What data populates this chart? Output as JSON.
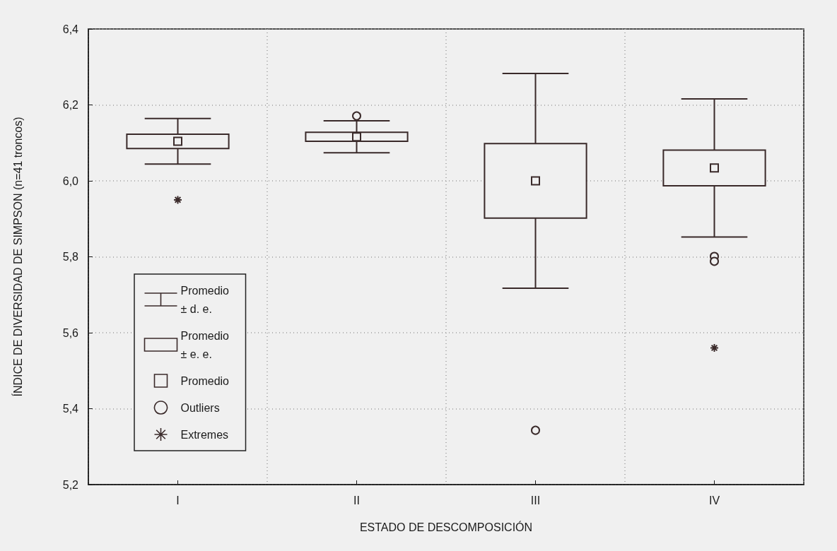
{
  "chart_data": {
    "type": "scatter",
    "xlabel": "ESTADO DE DESCOMPOSICIÓN",
    "ylabel": "ÍNDICE DE DIVERSIDAD DE SIMPSON (n=41 troncos)",
    "categories": [
      "I",
      "II",
      "III",
      "IV"
    ],
    "series": [
      {
        "name": "Promedio ± d. e.",
        "type": "bar",
        "color": "#3a2a2a",
        "base": [
          6.044,
          6.074,
          5.717,
          5.852
        ],
        "values": [
          0.12,
          0.084,
          0.566,
          0.364
        ]
      },
      {
        "name": "Promedio ± e. e.",
        "type": "bar",
        "color": "#3a2a2a",
        "base": [
          6.085,
          6.104,
          5.902,
          5.987
        ],
        "values": [
          0.038,
          0.024,
          0.196,
          0.094
        ]
      },
      {
        "name": "Promedio",
        "marker": "square",
        "color": "#3a2a2a",
        "values": [
          6.104,
          6.116,
          6.0,
          6.034
        ]
      },
      {
        "name": "Outliers",
        "marker": "circle",
        "color": "#3a2a2a",
        "x": [
          "II",
          "III",
          "IV",
          "IV"
        ],
        "values": [
          6.171,
          5.343,
          5.801,
          5.788
        ]
      },
      {
        "name": "Extremes",
        "marker": "cross",
        "color": "#3a2a2a",
        "x": [
          "I",
          "IV"
        ],
        "values": [
          5.95,
          5.56
        ]
      }
    ],
    "ylim": [
      5.2,
      6.4
    ],
    "yticks": [
      {
        "value": 5.2,
        "label": "5,2"
      },
      {
        "value": 5.4,
        "label": "5,4"
      },
      {
        "value": 5.6,
        "label": "5,6"
      },
      {
        "value": 5.8,
        "label": "5,8"
      },
      {
        "value": 6.0,
        "label": "6,0"
      },
      {
        "value": 6.2,
        "label": "6,2"
      },
      {
        "value": 6.4,
        "label": "6,4"
      }
    ],
    "grid": true,
    "legend": "bottom left"
  }
}
